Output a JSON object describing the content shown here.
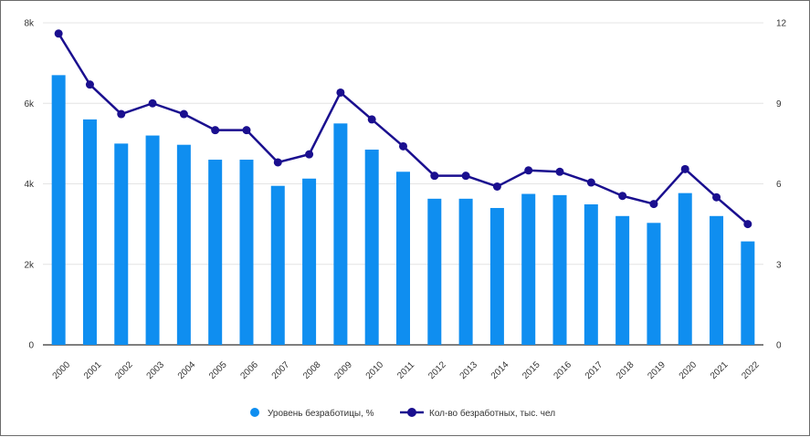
{
  "chart_data": {
    "type": "bar",
    "categories": [
      "2000",
      "2001",
      "2002",
      "2003",
      "2004",
      "2005",
      "2006",
      "2007",
      "2008",
      "2009",
      "2010",
      "2011",
      "2012",
      "2013",
      "2014",
      "2015",
      "2016",
      "2017",
      "2018",
      "2019",
      "2020",
      "2021",
      "2022"
    ],
    "series": [
      {
        "name": "Уровень безработицы, %",
        "type": "bar",
        "axis": "left",
        "values": [
          6700,
          5600,
          5000,
          5200,
          4970,
          4600,
          4600,
          3950,
          4130,
          5500,
          4850,
          4300,
          3630,
          3630,
          3400,
          3750,
          3720,
          3490,
          3200,
          3030,
          3770,
          3200,
          2570
        ]
      },
      {
        "name": "Кол-во безработных, тыс. чел",
        "type": "line",
        "axis": "right",
        "values": [
          11.6,
          9.7,
          8.6,
          9.0,
          8.6,
          8.0,
          8.0,
          6.8,
          7.1,
          9.4,
          8.4,
          7.4,
          6.3,
          6.3,
          5.9,
          6.5,
          6.45,
          6.05,
          5.55,
          5.25,
          6.55,
          5.5,
          4.5
        ]
      }
    ],
    "y_left": {
      "ticks": [
        "0",
        "2k",
        "4k",
        "6k",
        "8k"
      ],
      "ylim": [
        0,
        8000
      ]
    },
    "y_right": {
      "ticks": [
        "0",
        "3",
        "6",
        "9",
        "12"
      ],
      "ylim": [
        0,
        12
      ]
    },
    "grid": true,
    "legend_position": "bottom",
    "colors": {
      "bar": "#0f8ef0",
      "line": "#1a0f8f",
      "grid": "#e4e4e4",
      "axis": "#333333"
    }
  }
}
